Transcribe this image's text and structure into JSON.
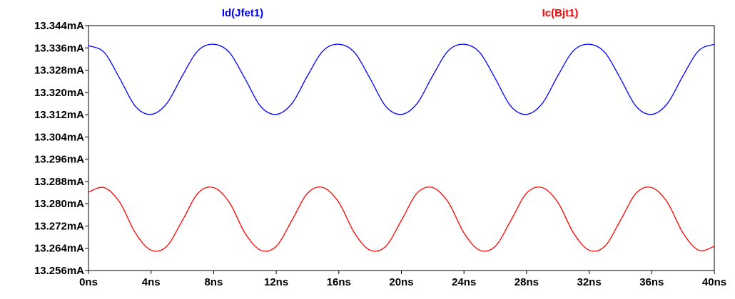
{
  "chart_data": {
    "type": "line",
    "title": "",
    "xlabel": "",
    "ylabel": "",
    "xlim": [
      0,
      40
    ],
    "ylim": [
      13.256,
      13.344
    ],
    "x_unit": "ns",
    "y_unit": "mA",
    "grid": false,
    "legend_placement": "top",
    "x_ticks": [
      "0ns",
      "4ns",
      "8ns",
      "12ns",
      "16ns",
      "20ns",
      "24ns",
      "28ns",
      "32ns",
      "36ns",
      "40ns"
    ],
    "y_ticks": [
      "13.344mA",
      "13.336mA",
      "13.328mA",
      "13.320mA",
      "13.312mA",
      "13.304mA",
      "13.296mA",
      "13.288mA",
      "13.280mA",
      "13.272mA",
      "13.264mA",
      "13.256mA"
    ],
    "series": [
      {
        "name": "Id(Jfet1)",
        "color": "#0000ff",
        "x": [
          0,
          1,
          2,
          3,
          4,
          5,
          6,
          7,
          8,
          9,
          10,
          11,
          12,
          13,
          14,
          15,
          16,
          17,
          18,
          19,
          20,
          21,
          22,
          23,
          24,
          25,
          26,
          27,
          28,
          29,
          30,
          31,
          32,
          33,
          34,
          35,
          36,
          37,
          38,
          39,
          40
        ],
        "values": [
          13.3368,
          13.3344,
          13.325,
          13.315,
          13.3121,
          13.316,
          13.326,
          13.335,
          13.3373,
          13.3344,
          13.325,
          13.315,
          13.3121,
          13.316,
          13.326,
          13.335,
          13.3373,
          13.3344,
          13.325,
          13.315,
          13.3121,
          13.316,
          13.326,
          13.335,
          13.3373,
          13.3344,
          13.325,
          13.315,
          13.3121,
          13.316,
          13.326,
          13.335,
          13.3373,
          13.3344,
          13.325,
          13.315,
          13.3121,
          13.316,
          13.326,
          13.335,
          13.3373
        ]
      },
      {
        "name": "Ic(Bjt1)",
        "color": "#ff0000",
        "x": [
          0,
          1,
          2,
          3,
          4,
          5,
          6,
          7,
          8,
          9,
          10,
          11,
          12,
          13,
          14,
          15,
          16,
          17,
          18,
          19,
          20,
          21,
          22,
          23,
          24,
          25,
          26,
          27,
          28,
          29,
          30,
          31,
          32,
          33,
          34,
          35,
          36,
          37,
          38,
          39,
          40
        ],
        "values": [
          13.2842,
          13.2858,
          13.2805,
          13.2695,
          13.2633,
          13.2647,
          13.274,
          13.2838,
          13.2858,
          13.2805,
          13.2695,
          13.2633,
          13.2647,
          13.274,
          13.2838,
          13.2858,
          13.2805,
          13.2695,
          13.2633,
          13.2647,
          13.274,
          13.2838,
          13.2858,
          13.2805,
          13.2695,
          13.2633,
          13.2647,
          13.274,
          13.2838,
          13.2858,
          13.2805,
          13.2695,
          13.2633,
          13.2647,
          13.274,
          13.2838,
          13.2858,
          13.2805,
          13.2695,
          13.2633,
          13.2647
        ]
      }
    ]
  }
}
